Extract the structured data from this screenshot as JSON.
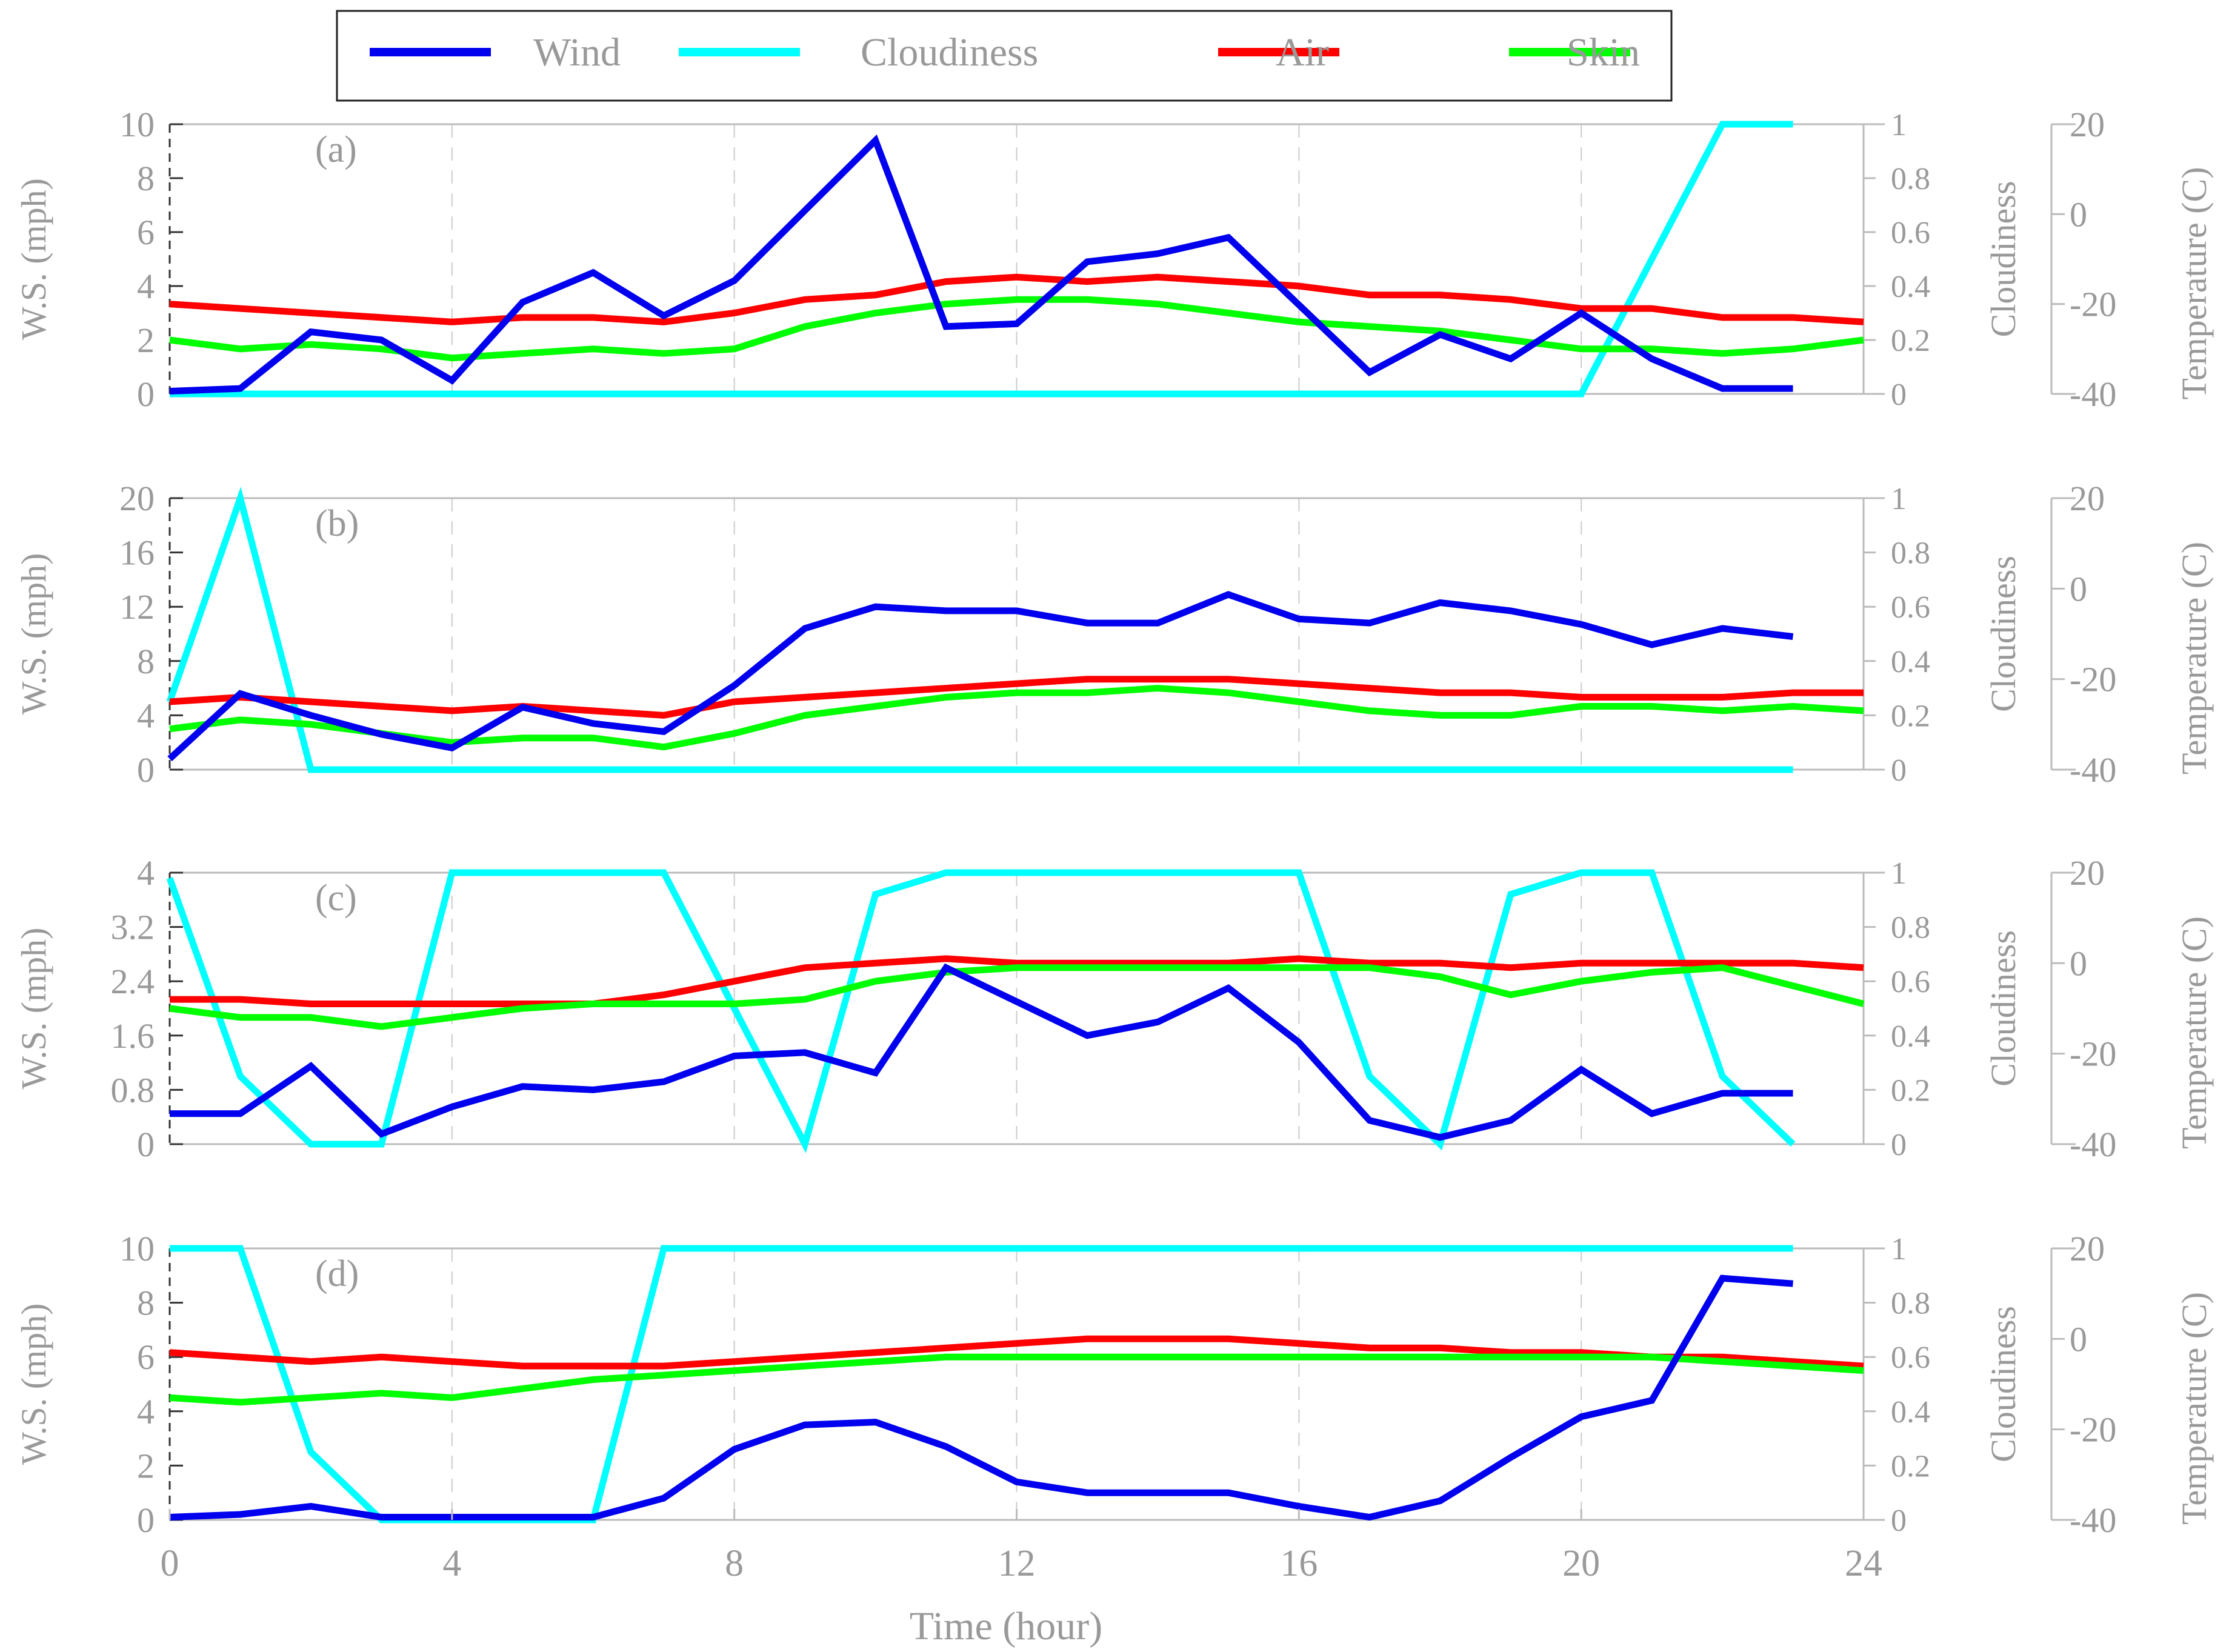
{
  "legend": [
    {
      "key": "wind",
      "label": "Wind"
    },
    {
      "key": "cloud",
      "label": "Cloudiness"
    },
    {
      "key": "air",
      "label": "Air"
    },
    {
      "key": "skin",
      "label": "Skin"
    }
  ],
  "colors": {
    "wind": "#0000ee",
    "cloud": "#00ffff",
    "air": "#ff0000",
    "skin": "#00ff00",
    "axis": "#999999"
  },
  "xlabel": "Time (hour)",
  "x_ticks": [
    0,
    4,
    8,
    12,
    16,
    20,
    24
  ],
  "chart_data": [
    {
      "type": "line",
      "panel_label": "(a)",
      "ylabel_left": "W.S. (mph)",
      "ylabel_cloud": "Cloudiness",
      "ylabel_right": "Temperature (C)",
      "xlim": [
        0,
        24
      ],
      "ylim_ws": [
        0,
        10
      ],
      "ws_ticks": [
        "0",
        "2",
        "4",
        "6",
        "8",
        "10"
      ],
      "ylim_cloud": [
        0,
        1
      ],
      "cloud_ticks": [
        "0",
        "0.2",
        "0.4",
        "0.6",
        "0.8",
        "1"
      ],
      "ylim_temp": [
        -40,
        20
      ],
      "temp_ticks": [
        "-40",
        "-20",
        "0",
        "20"
      ],
      "series": [
        {
          "name": "Wind",
          "key": "wind",
          "axis": "ws",
          "x": [
            0,
            1,
            2,
            3,
            4,
            5,
            6,
            7,
            8,
            9,
            10,
            11,
            12,
            13,
            14,
            15,
            16,
            17,
            18,
            19,
            20,
            21,
            22,
            23
          ],
          "y": [
            0.1,
            0.2,
            2.3,
            2.0,
            0.5,
            3.4,
            4.5,
            2.9,
            4.2,
            6.8,
            9.4,
            2.5,
            2.6,
            4.9,
            5.2,
            5.8,
            3.3,
            0.8,
            2.2,
            1.3,
            3.0,
            1.3,
            0.2,
            0.2
          ]
        },
        {
          "name": "Cloudiness",
          "key": "cloud",
          "axis": "cloud",
          "x": [
            0,
            20,
            21,
            22,
            23
          ],
          "y": [
            0,
            0,
            0.5,
            1,
            1
          ]
        },
        {
          "name": "Air",
          "key": "air",
          "axis": "temp",
          "x": [
            0,
            2,
            4,
            5,
            6,
            7,
            8,
            9,
            10,
            11,
            12,
            13,
            14,
            15,
            16,
            17,
            18,
            19,
            20,
            21,
            22,
            23,
            24
          ],
          "y": [
            -20,
            -22,
            -24,
            -23,
            -23,
            -24,
            -22,
            -19,
            -18,
            -15,
            -14,
            -15,
            -14,
            -15,
            -16,
            -18,
            -18,
            -19,
            -21,
            -21,
            -23,
            -23,
            -24
          ]
        },
        {
          "name": "Skin",
          "key": "skin",
          "axis": "temp",
          "x": [
            0,
            1,
            2,
            3,
            4,
            5,
            6,
            7,
            8,
            9,
            10,
            11,
            12,
            13,
            14,
            15,
            16,
            17,
            18,
            19,
            20,
            21,
            22,
            23,
            24
          ],
          "y": [
            -28,
            -30,
            -29,
            -30,
            -32,
            -31,
            -30,
            -31,
            -30,
            -25,
            -22,
            -20,
            -19,
            -19,
            -20,
            -22,
            -24,
            -25,
            -26,
            -28,
            -30,
            -30,
            -31,
            -30,
            -28
          ]
        }
      ]
    },
    {
      "type": "line",
      "panel_label": "(b)",
      "ylabel_left": "W.S. (mph)",
      "ylabel_cloud": "Cloudiness",
      "ylabel_right": "Temperature (C)",
      "xlim": [
        0,
        24
      ],
      "ylim_ws": [
        0,
        20
      ],
      "ws_ticks": [
        "0",
        "4",
        "8",
        "12",
        "16",
        "20"
      ],
      "ylim_cloud": [
        0,
        1
      ],
      "cloud_ticks": [
        "0",
        "0.2",
        "0.4",
        "0.6",
        "0.8",
        "1"
      ],
      "ylim_temp": [
        -40,
        20
      ],
      "temp_ticks": [
        "-40",
        "-20",
        "0",
        "20"
      ],
      "series": [
        {
          "name": "Wind",
          "key": "wind",
          "axis": "ws",
          "x": [
            0,
            1,
            2,
            3,
            4,
            5,
            6,
            7,
            8,
            9,
            10,
            11,
            12,
            13,
            14,
            15,
            16,
            17,
            18,
            19,
            20,
            21,
            22,
            23
          ],
          "y": [
            0.8,
            5.6,
            4.0,
            2.6,
            1.6,
            4.6,
            3.4,
            2.8,
            6.2,
            10.4,
            12.0,
            11.7,
            11.7,
            10.8,
            10.8,
            12.9,
            11.1,
            10.8,
            12.3,
            11.7,
            10.7,
            9.2,
            10.4,
            9.8
          ]
        },
        {
          "name": "Cloudiness",
          "key": "cloud",
          "axis": "cloud",
          "x": [
            0,
            1,
            2,
            23
          ],
          "y": [
            0.25,
            1,
            0,
            0
          ]
        },
        {
          "name": "Air",
          "key": "air",
          "axis": "temp",
          "x": [
            0,
            1,
            2,
            3,
            4,
            5,
            6,
            7,
            8,
            9,
            10,
            11,
            12,
            13,
            14,
            15,
            16,
            17,
            18,
            19,
            20,
            21,
            22,
            23,
            24
          ],
          "y": [
            -25,
            -24,
            -25,
            -26,
            -27,
            -26,
            -27,
            -28,
            -25,
            -24,
            -23,
            -22,
            -21,
            -20,
            -20,
            -20,
            -21,
            -22,
            -23,
            -23,
            -24,
            -24,
            -24,
            -23,
            -23
          ]
        },
        {
          "name": "Skin",
          "key": "skin",
          "axis": "temp",
          "x": [
            0,
            1,
            2,
            3,
            4,
            5,
            6,
            7,
            8,
            9,
            10,
            11,
            12,
            13,
            14,
            15,
            16,
            17,
            18,
            19,
            20,
            21,
            22,
            23,
            24
          ],
          "y": [
            -31,
            -29,
            -30,
            -32,
            -34,
            -33,
            -33,
            -35,
            -32,
            -28,
            -26,
            -24,
            -23,
            -23,
            -22,
            -23,
            -25,
            -27,
            -28,
            -28,
            -26,
            -26,
            -27,
            -26,
            -27
          ]
        }
      ]
    },
    {
      "type": "line",
      "panel_label": "(c)",
      "ylabel_left": "W.S. (mph)",
      "ylabel_cloud": "Cloudiness",
      "ylabel_right": "Temperature (C)",
      "xlim": [
        0,
        24
      ],
      "ylim_ws": [
        0,
        4
      ],
      "ws_ticks": [
        "0",
        "0.8",
        "1.6",
        "2.4",
        "3.2",
        "4"
      ],
      "ylim_cloud": [
        0,
        1
      ],
      "cloud_ticks": [
        "0",
        "0.2",
        "0.4",
        "0.6",
        "0.8",
        "1"
      ],
      "ylim_temp": [
        -40,
        20
      ],
      "temp_ticks": [
        "-40",
        "-20",
        "0",
        "20"
      ],
      "series": [
        {
          "name": "Wind",
          "key": "wind",
          "axis": "ws",
          "x": [
            0,
            1,
            2,
            3,
            4,
            5,
            6,
            7,
            8,
            9,
            10,
            11,
            12,
            13,
            14,
            15,
            16,
            17,
            18,
            19,
            20,
            21,
            22,
            23
          ],
          "y": [
            0.45,
            0.45,
            1.15,
            0.15,
            0.55,
            0.85,
            0.8,
            0.92,
            1.3,
            1.35,
            1.05,
            2.6,
            2.1,
            1.6,
            1.8,
            2.3,
            1.5,
            0.35,
            0.1,
            0.35,
            1.1,
            0.45,
            0.75,
            0.75
          ]
        },
        {
          "name": "Cloudiness",
          "key": "cloud",
          "axis": "cloud",
          "x": [
            0,
            1,
            2,
            3,
            4,
            7,
            8,
            9,
            10,
            11,
            16,
            17,
            18,
            19,
            20,
            21,
            22,
            23
          ],
          "y": [
            0.98,
            0.25,
            0,
            0,
            1,
            1,
            0.5,
            0,
            0.92,
            1,
            1,
            0.25,
            0,
            0.92,
            1,
            1,
            0.25,
            0
          ]
        },
        {
          "name": "Air",
          "key": "air",
          "axis": "temp",
          "x": [
            0,
            1,
            2,
            3,
            4,
            5,
            6,
            7,
            8,
            9,
            10,
            11,
            12,
            13,
            14,
            15,
            16,
            17,
            18,
            19,
            20,
            21,
            22,
            23,
            24
          ],
          "y": [
            -8,
            -8,
            -9,
            -9,
            -9,
            -9,
            -9,
            -7,
            -4,
            -1,
            0,
            1,
            0,
            0,
            0,
            0,
            1,
            0,
            0,
            -1,
            0,
            0,
            0,
            0,
            -1
          ]
        },
        {
          "name": "Skin",
          "key": "skin",
          "axis": "temp",
          "x": [
            0,
            1,
            2,
            3,
            4,
            5,
            6,
            7,
            8,
            9,
            10,
            11,
            12,
            13,
            14,
            15,
            16,
            17,
            18,
            19,
            20,
            21,
            22,
            23,
            24
          ],
          "y": [
            -10,
            -12,
            -12,
            -14,
            -12,
            -10,
            -9,
            -9,
            -9,
            -8,
            -4,
            -2,
            -1,
            -1,
            -1,
            -1,
            -1,
            -1,
            -3,
            -7,
            -4,
            -2,
            -1,
            -5,
            -9
          ]
        }
      ]
    },
    {
      "type": "line",
      "panel_label": "(d)",
      "ylabel_left": "W.S. (mph)",
      "ylabel_cloud": "Cloudiness",
      "ylabel_right": "Temperature (C)",
      "xlim": [
        0,
        24
      ],
      "ylim_ws": [
        0,
        10
      ],
      "ws_ticks": [
        "0",
        "2",
        "4",
        "6",
        "8",
        "10"
      ],
      "ylim_cloud": [
        0,
        1
      ],
      "cloud_ticks": [
        "0",
        "0.2",
        "0.4",
        "0.6",
        "0.8",
        "1"
      ],
      "ylim_temp": [
        -40,
        20
      ],
      "temp_ticks": [
        "-40",
        "-20",
        "0",
        "20"
      ],
      "series": [
        {
          "name": "Wind",
          "key": "wind",
          "axis": "ws",
          "x": [
            0,
            1,
            2,
            3,
            4,
            5,
            6,
            7,
            8,
            9,
            10,
            11,
            12,
            13,
            14,
            15,
            16,
            17,
            18,
            19,
            20,
            21,
            22,
            23
          ],
          "y": [
            0.1,
            0.2,
            0.5,
            0.1,
            0.1,
            0.1,
            0.1,
            0.8,
            2.6,
            3.5,
            3.6,
            2.7,
            1.4,
            1.0,
            1.0,
            1.0,
            0.5,
            0.1,
            0.7,
            2.3,
            3.8,
            4.4,
            8.9,
            8.7
          ]
        },
        {
          "name": "Cloudiness",
          "key": "cloud",
          "axis": "cloud",
          "x": [
            0,
            1,
            2,
            3,
            6,
            7,
            23
          ],
          "y": [
            1,
            1,
            0.25,
            0,
            0,
            1,
            1
          ]
        },
        {
          "name": "Air",
          "key": "air",
          "axis": "temp",
          "x": [
            0,
            1,
            2,
            3,
            4,
            5,
            6,
            7,
            8,
            9,
            10,
            11,
            12,
            13,
            14,
            15,
            16,
            17,
            18,
            19,
            20,
            21,
            22,
            23,
            24
          ],
          "y": [
            -3,
            -4,
            -5,
            -4,
            -5,
            -6,
            -6,
            -6,
            -5,
            -4,
            -3,
            -2,
            -1,
            0,
            0,
            0,
            -1,
            -2,
            -2,
            -3,
            -3,
            -4,
            -4,
            -5,
            -6
          ]
        },
        {
          "name": "Skin",
          "key": "skin",
          "axis": "temp",
          "x": [
            0,
            1,
            2,
            3,
            4,
            5,
            6,
            7,
            8,
            9,
            10,
            11,
            12,
            13,
            14,
            15,
            16,
            17,
            18,
            19,
            20,
            21,
            22,
            23,
            24
          ],
          "y": [
            -13,
            -14,
            -13,
            -12,
            -13,
            -11,
            -9,
            -8,
            -7,
            -6,
            -5,
            -4,
            -4,
            -4,
            -4,
            -4,
            -4,
            -4,
            -4,
            -4,
            -4,
            -4,
            -5,
            -6,
            -7
          ]
        }
      ]
    }
  ]
}
